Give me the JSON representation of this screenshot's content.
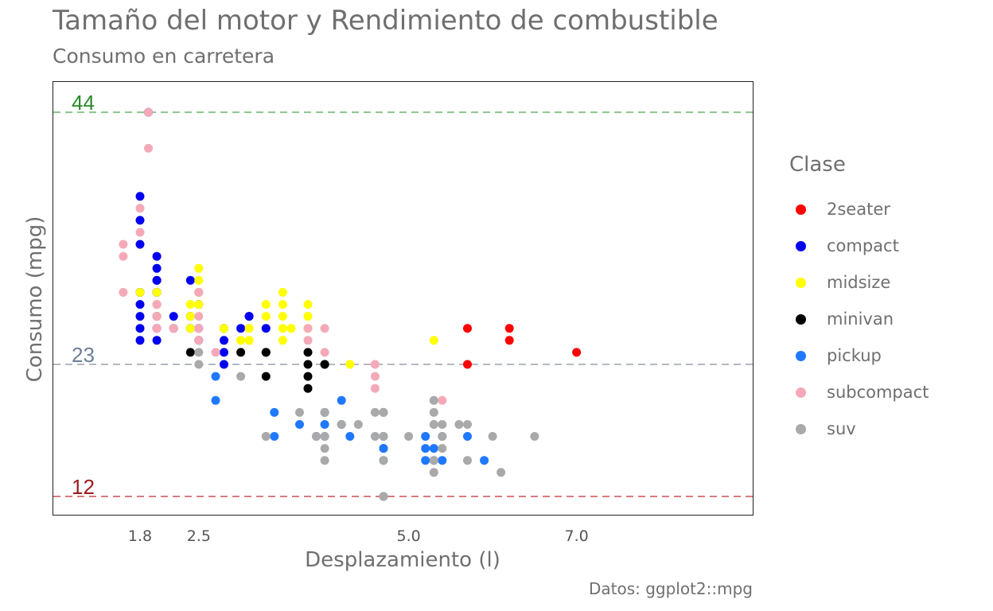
{
  "chart_data": {
    "type": "scatter",
    "title": "Tamaño del motor y Rendimiento de combustible",
    "subtitle": "Consumo en carretera",
    "caption": "Datos: ggplot2::mpg",
    "xlabel": "Desplazamiento (l)",
    "ylabel": "Consumo (mpg)",
    "xlim": [
      1.6,
      7.0
    ],
    "ylim": [
      12,
      44
    ],
    "x_ticks": [
      1.8,
      2.5,
      5.0,
      7.0
    ],
    "x_tick_labels": [
      "1.8",
      "2.5",
      "5.0",
      "7.0"
    ],
    "y_ticks": [],
    "grid": false,
    "legend_title": "Clase",
    "legend_position": "right",
    "reference_lines": [
      {
        "value": 44,
        "label": "44",
        "color": "#2a8a2a",
        "line_color": "#8cc48c"
      },
      {
        "value": 23,
        "label": "23",
        "color": "#6c7f96",
        "line_color": "#b4b9bf"
      },
      {
        "value": 12,
        "label": "12",
        "color": "#9b1b1b",
        "line_color": "#d97b7b"
      }
    ],
    "series": [
      {
        "name": "2seater",
        "color": "#ff0000",
        "points": [
          [
            5.7,
            26
          ],
          [
            5.7,
            23
          ],
          [
            6.2,
            26
          ],
          [
            6.2,
            25
          ],
          [
            7.0,
            24
          ]
        ]
      },
      {
        "name": "compact",
        "color": "#0000ee",
        "points": [
          [
            1.8,
            29
          ],
          [
            1.8,
            29
          ],
          [
            2.0,
            31
          ],
          [
            2.0,
            30
          ],
          [
            2.8,
            26
          ],
          [
            2.8,
            26
          ],
          [
            3.1,
            27
          ],
          [
            1.8,
            26
          ],
          [
            1.8,
            25
          ],
          [
            1.8,
            28
          ],
          [
            1.8,
            27
          ],
          [
            2.0,
            29
          ],
          [
            2.0,
            30
          ],
          [
            2.4,
            27
          ],
          [
            2.4,
            30
          ],
          [
            2.5,
            25
          ],
          [
            2.5,
            26
          ],
          [
            2.2,
            26
          ],
          [
            2.2,
            27
          ],
          [
            2.0,
            32
          ],
          [
            1.9,
            44
          ],
          [
            1.8,
            33
          ],
          [
            1.8,
            35
          ],
          [
            1.8,
            37
          ],
          [
            2.0,
            29
          ],
          [
            2.5,
            29
          ],
          [
            2.5,
            28
          ],
          [
            3.3,
            26
          ],
          [
            3.0,
            26
          ],
          [
            2.8,
            24
          ],
          [
            2.8,
            25
          ],
          [
            2.8,
            23
          ],
          [
            3.1,
            27
          ],
          [
            2.0,
            27
          ],
          [
            2.0,
            26
          ],
          [
            2.0,
            25
          ],
          [
            2.0,
            27
          ],
          [
            2.4,
            26
          ],
          [
            2.0,
            28
          ]
        ]
      },
      {
        "name": "midsize",
        "color": "#ffff00",
        "points": [
          [
            2.4,
            27
          ],
          [
            2.4,
            28
          ],
          [
            2.5,
            28
          ],
          [
            2.5,
            30
          ],
          [
            2.5,
            31
          ],
          [
            3.5,
            28
          ],
          [
            3.5,
            29
          ],
          [
            3.5,
            27
          ],
          [
            3.3,
            27
          ],
          [
            3.6,
            26
          ],
          [
            3.8,
            28
          ],
          [
            3.8,
            26
          ],
          [
            3.8,
            27
          ],
          [
            4.3,
            23
          ],
          [
            2.8,
            26
          ],
          [
            3.0,
            25
          ],
          [
            3.1,
            25
          ],
          [
            2.4,
            26
          ],
          [
            3.1,
            26
          ],
          [
            2.0,
            28
          ],
          [
            2.0,
            27
          ],
          [
            2.0,
            29
          ],
          [
            2.8,
            26
          ],
          [
            3.5,
            26
          ],
          [
            3.3,
            28
          ],
          [
            3.5,
            25
          ],
          [
            5.3,
            25
          ],
          [
            1.8,
            29
          ],
          [
            2.5,
            29
          ]
        ]
      },
      {
        "name": "minivan",
        "color": "#000000",
        "points": [
          [
            2.4,
            24
          ],
          [
            3.0,
            24
          ],
          [
            3.3,
            22
          ],
          [
            3.3,
            24
          ],
          [
            3.3,
            24
          ],
          [
            3.8,
            22
          ],
          [
            3.8,
            24
          ],
          [
            3.8,
            21
          ],
          [
            3.8,
            23
          ],
          [
            4.0,
            23
          ],
          [
            4.0,
            23
          ]
        ]
      },
      {
        "name": "pickup",
        "color": "#1f78ff",
        "points": [
          [
            2.7,
            20
          ],
          [
            2.7,
            22
          ],
          [
            3.4,
            19
          ],
          [
            3.4,
            17
          ],
          [
            3.7,
            18
          ],
          [
            3.9,
            17
          ],
          [
            4.2,
            20
          ],
          [
            4.2,
            18
          ],
          [
            4.7,
            17
          ],
          [
            4.7,
            15
          ],
          [
            4.7,
            16
          ],
          [
            5.2,
            17
          ],
          [
            5.2,
            15
          ],
          [
            5.7,
            17
          ],
          [
            5.9,
            15
          ],
          [
            4.0,
            19
          ],
          [
            4.3,
            17
          ],
          [
            4.7,
            19
          ],
          [
            5.3,
            16
          ],
          [
            5.3,
            15
          ],
          [
            5.4,
            15
          ],
          [
            5.4,
            17
          ],
          [
            4.0,
            17
          ],
          [
            4.0,
            18
          ],
          [
            4.7,
            12
          ],
          [
            4.7,
            16
          ],
          [
            5.2,
            16
          ]
        ]
      },
      {
        "name": "subcompact",
        "color": "#f5a9b8",
        "points": [
          [
            1.6,
            33
          ],
          [
            1.6,
            32
          ],
          [
            1.6,
            29
          ],
          [
            1.8,
            34
          ],
          [
            1.8,
            36
          ],
          [
            1.9,
            41
          ],
          [
            2.0,
            28
          ],
          [
            2.0,
            26
          ],
          [
            2.2,
            26
          ],
          [
            2.5,
            26
          ],
          [
            2.5,
            25
          ],
          [
            2.5,
            27
          ],
          [
            2.7,
            24
          ],
          [
            3.8,
            26
          ],
          [
            3.8,
            25
          ],
          [
            4.0,
            26
          ],
          [
            4.0,
            24
          ],
          [
            4.6,
            23
          ],
          [
            4.6,
            22
          ],
          [
            4.6,
            21
          ],
          [
            5.4,
            20
          ],
          [
            2.5,
            29
          ],
          [
            2.0,
            27
          ],
          [
            1.9,
            44
          ]
        ]
      },
      {
        "name": "suv",
        "color": "#a9a9a9",
        "points": [
          [
            3.0,
            22
          ],
          [
            4.0,
            17
          ],
          [
            4.0,
            19
          ],
          [
            4.0,
            15
          ],
          [
            4.2,
            18
          ],
          [
            4.4,
            18
          ],
          [
            4.6,
            17
          ],
          [
            4.6,
            19
          ],
          [
            4.7,
            19
          ],
          [
            4.7,
            17
          ],
          [
            4.7,
            15
          ],
          [
            5.0,
            17
          ],
          [
            5.3,
            18
          ],
          [
            5.3,
            20
          ],
          [
            5.3,
            19
          ],
          [
            5.4,
            17
          ],
          [
            5.4,
            16
          ],
          [
            5.4,
            18
          ],
          [
            5.6,
            18
          ],
          [
            5.7,
            18
          ],
          [
            5.7,
            15
          ],
          [
            6.0,
            17
          ],
          [
            6.1,
            14
          ],
          [
            6.5,
            17
          ],
          [
            3.3,
            17
          ],
          [
            3.3,
            17
          ],
          [
            3.7,
            19
          ],
          [
            3.9,
            17
          ],
          [
            4.0,
            16
          ],
          [
            4.7,
            12
          ],
          [
            5.3,
            15
          ],
          [
            5.3,
            14
          ],
          [
            2.5,
            24
          ],
          [
            2.5,
            23
          ],
          [
            4.7,
            19
          ]
        ]
      }
    ]
  }
}
